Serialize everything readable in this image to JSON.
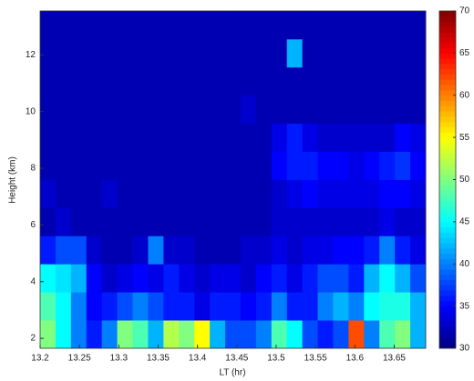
{
  "chart_data": {
    "type": "heatmap",
    "xlabel": "LT (hr)",
    "ylabel": "Height (km)",
    "xlim": [
      13.2,
      13.69
    ],
    "ylim": [
      1.65,
      13.55
    ],
    "xticks": [
      13.2,
      13.25,
      13.3,
      13.35,
      13.4,
      13.45,
      13.5,
      13.55,
      13.6,
      13.65
    ],
    "yticks": [
      2,
      4,
      6,
      8,
      10,
      12
    ],
    "colormap": "jet",
    "clim": [
      30,
      70
    ],
    "cticks": [
      30,
      35,
      40,
      45,
      50,
      55,
      60,
      65,
      70
    ],
    "z": [
      [
        50,
        45,
        40,
        36,
        40,
        50,
        48,
        42,
        52,
        50,
        55,
        42,
        38,
        38,
        40,
        48,
        45,
        38,
        36,
        38,
        62,
        40,
        48,
        50,
        42
      ],
      [
        48,
        45,
        40,
        35,
        36,
        38,
        40,
        38,
        36,
        36,
        34,
        36,
        36,
        35,
        36,
        40,
        36,
        36,
        40,
        42,
        40,
        45,
        46,
        46,
        42
      ],
      [
        45,
        44,
        42,
        35,
        33,
        34,
        35,
        34,
        36,
        34,
        33,
        34,
        34,
        33,
        35,
        36,
        34,
        36,
        38,
        38,
        36,
        42,
        45,
        42,
        38
      ],
      [
        36,
        38,
        38,
        33,
        32,
        32,
        33,
        40,
        33,
        33,
        32,
        32,
        32,
        33,
        33,
        34,
        33,
        34,
        34,
        35,
        35,
        36,
        40,
        36,
        34
      ],
      [
        32,
        33,
        32,
        32,
        32,
        32,
        32,
        32,
        32,
        32,
        32,
        32,
        32,
        32,
        32,
        33,
        33,
        33,
        33,
        33,
        33,
        33,
        34,
        33,
        33
      ],
      [
        33,
        32,
        32,
        32,
        33,
        32,
        32,
        32,
        32,
        32,
        32,
        32,
        32,
        32,
        32,
        33,
        34,
        35,
        34,
        34,
        34,
        34,
        35,
        35,
        34
      ],
      [
        32,
        32,
        32,
        32,
        32,
        32,
        32,
        32,
        32,
        32,
        32,
        32,
        32,
        32,
        32,
        35,
        36,
        36,
        35,
        35,
        34,
        35,
        36,
        37,
        35
      ],
      [
        32,
        32,
        32,
        32,
        32,
        32,
        32,
        32,
        32,
        32,
        32,
        32,
        32,
        32,
        32,
        34,
        36,
        34,
        33,
        33,
        33,
        33,
        33,
        35,
        34
      ],
      [
        32,
        32,
        32,
        32,
        32,
        32,
        32,
        32,
        32,
        32,
        32,
        32,
        32,
        33,
        32,
        32,
        32,
        32,
        32,
        32,
        32,
        32,
        32,
        32,
        32
      ],
      [
        32,
        32,
        32,
        32,
        32,
        32,
        32,
        32,
        32,
        32,
        32,
        32,
        32,
        32,
        32,
        32,
        32,
        32,
        32,
        32,
        32,
        32,
        32,
        32,
        32
      ],
      [
        32,
        32,
        32,
        32,
        32,
        32,
        32,
        32,
        32,
        32,
        32,
        32,
        32,
        32,
        32,
        32,
        42,
        32,
        32,
        32,
        32,
        32,
        32,
        32,
        32
      ],
      [
        32,
        32,
        32,
        32,
        32,
        32,
        32,
        32,
        32,
        32,
        32,
        32,
        32,
        32,
        32,
        32,
        32,
        32,
        32,
        32,
        32,
        32,
        32,
        32,
        32
      ]
    ]
  }
}
